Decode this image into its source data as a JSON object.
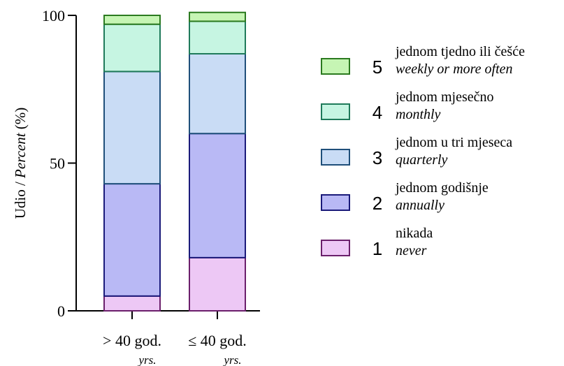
{
  "chart_data": {
    "type": "bar",
    "stacked": true,
    "ylabel_plain": "Udio / ",
    "ylabel_italic": "Percent",
    "ylabel_unit": " (%)",
    "ylim": [
      0,
      100
    ],
    "yticks": [
      "0",
      "50",
      "100"
    ],
    "categories": [
      {
        "label": "> 40 god.",
        "sublabel": "yrs."
      },
      {
        "label": "≤ 40 god.",
        "sublabel": "yrs."
      }
    ],
    "series": [
      {
        "name": "1",
        "label_hr": "nikada",
        "label_en": "never",
        "fill": "#edc8f5",
        "stroke": "#6b1f6b",
        "values": [
          5,
          18
        ]
      },
      {
        "name": "2",
        "label_hr": "jednom godišnje",
        "label_en": "annually",
        "fill": "#b9b9f5",
        "stroke": "#1a1a7a",
        "values": [
          38,
          42
        ]
      },
      {
        "name": "3",
        "label_hr": "jednom u tri mjeseca",
        "label_en": "quarterly",
        "fill": "#c9dcf5",
        "stroke": "#1f4f7a",
        "values": [
          38,
          27
        ]
      },
      {
        "name": "4",
        "label_hr": "jednom mjesečno",
        "label_en": "monthly",
        "fill": "#c6f5e2",
        "stroke": "#1f7a5a",
        "values": [
          16,
          11
        ]
      },
      {
        "name": "5",
        "label_hr": "jednom tjedno ili češće",
        "label_en": "weekly or more often",
        "fill": "#c6f5b4",
        "stroke": "#2b7a1f",
        "values": [
          3,
          3
        ]
      }
    ]
  }
}
